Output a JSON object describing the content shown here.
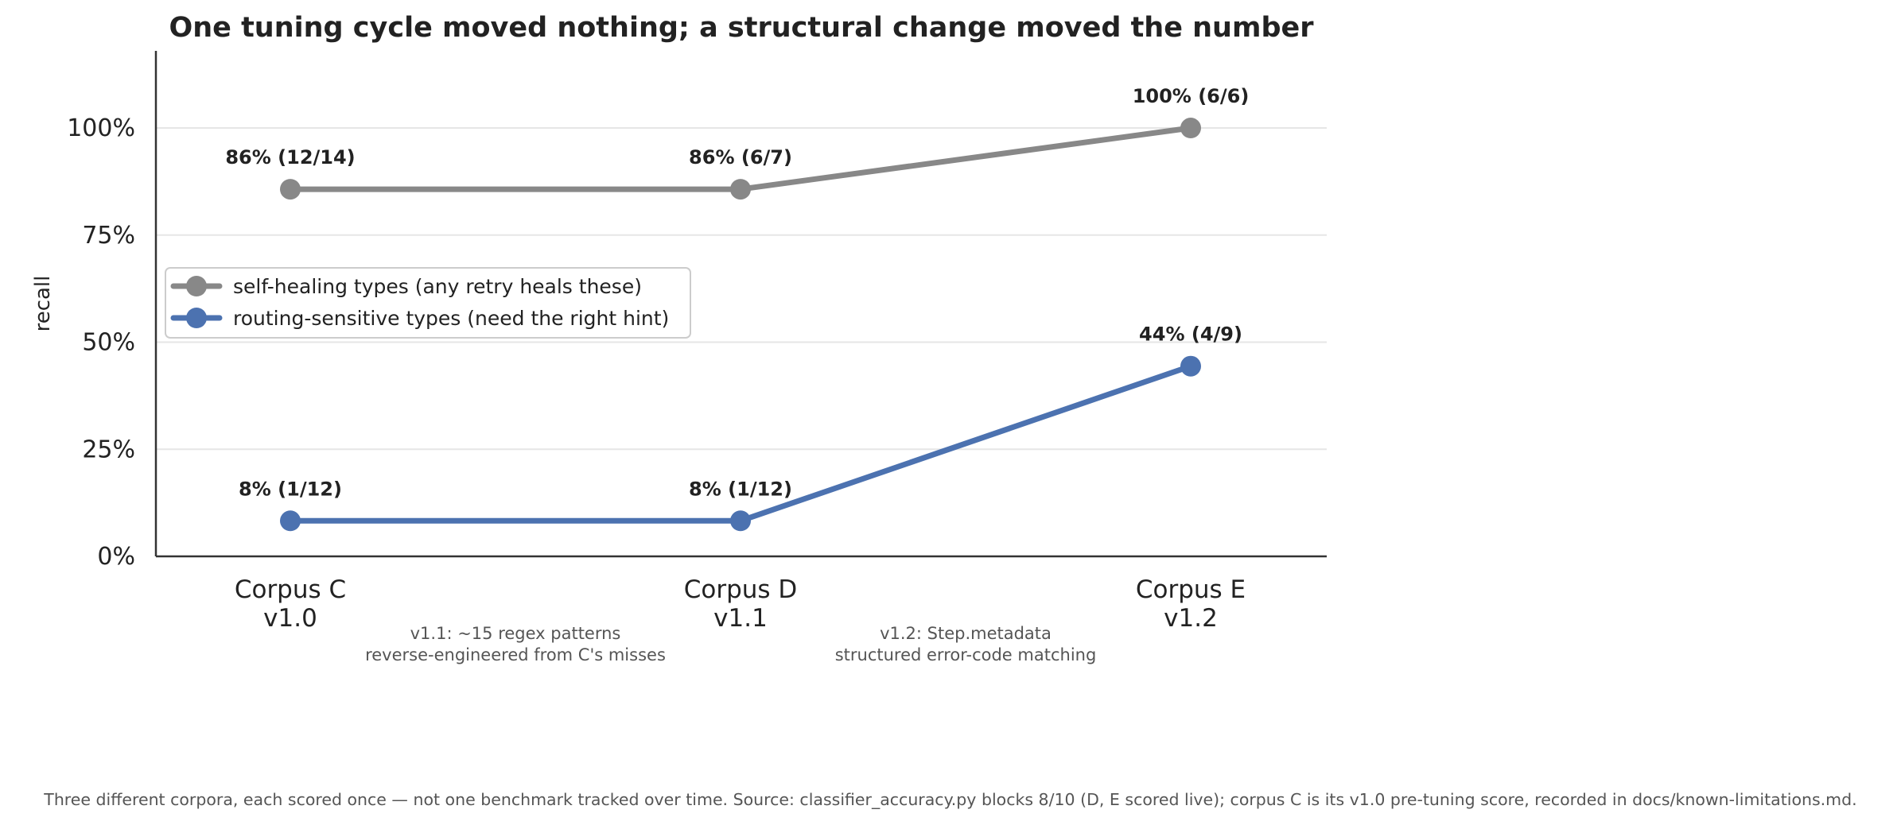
{
  "chart_data": {
    "type": "line",
    "title": "One tuning cycle moved nothing; a structural change moved the number",
    "ylabel": "recall",
    "xlabel": "",
    "ylim": [
      0,
      1.18
    ],
    "yticks": [
      0,
      0.25,
      0.5,
      0.75,
      1.0
    ],
    "ytick_labels": [
      "0%",
      "25%",
      "50%",
      "75%",
      "100%"
    ],
    "grid": "horizontal",
    "legend_position": "center-left",
    "categories": [
      {
        "line1": "Corpus C",
        "line2": "v1.0"
      },
      {
        "line1": "Corpus D",
        "line2": "v1.1"
      },
      {
        "line1": "Corpus E",
        "line2": "v1.2"
      }
    ],
    "series": [
      {
        "name": "self-healing types (any retry heals these)",
        "color": "#888888",
        "values": [
          0.857,
          0.857,
          1.0
        ],
        "labels": [
          "86% (12/14)",
          "86% (6/7)",
          "100% (6/6)"
        ]
      },
      {
        "name": "routing-sensitive types (need the right hint)",
        "color": "#4c72b0",
        "values": [
          0.083,
          0.083,
          0.444
        ],
        "labels": [
          "8% (1/12)",
          "8% (1/12)",
          "44% (4/9)"
        ]
      }
    ],
    "annotations": [
      {
        "line1": "v1.1: ~15 regex patterns",
        "line2": "reverse-engineered from C's misses"
      },
      {
        "line1": "v1.2: Step.metadata",
        "line2": "structured error-code matching"
      }
    ],
    "footnote": "Three different corpora, each scored once — not one benchmark tracked over time. Source: classifier_accuracy.py blocks 8/10 (D, E scored live); corpus C is its v1.0 pre-tuning score, recorded in docs/known-limitations.md."
  }
}
